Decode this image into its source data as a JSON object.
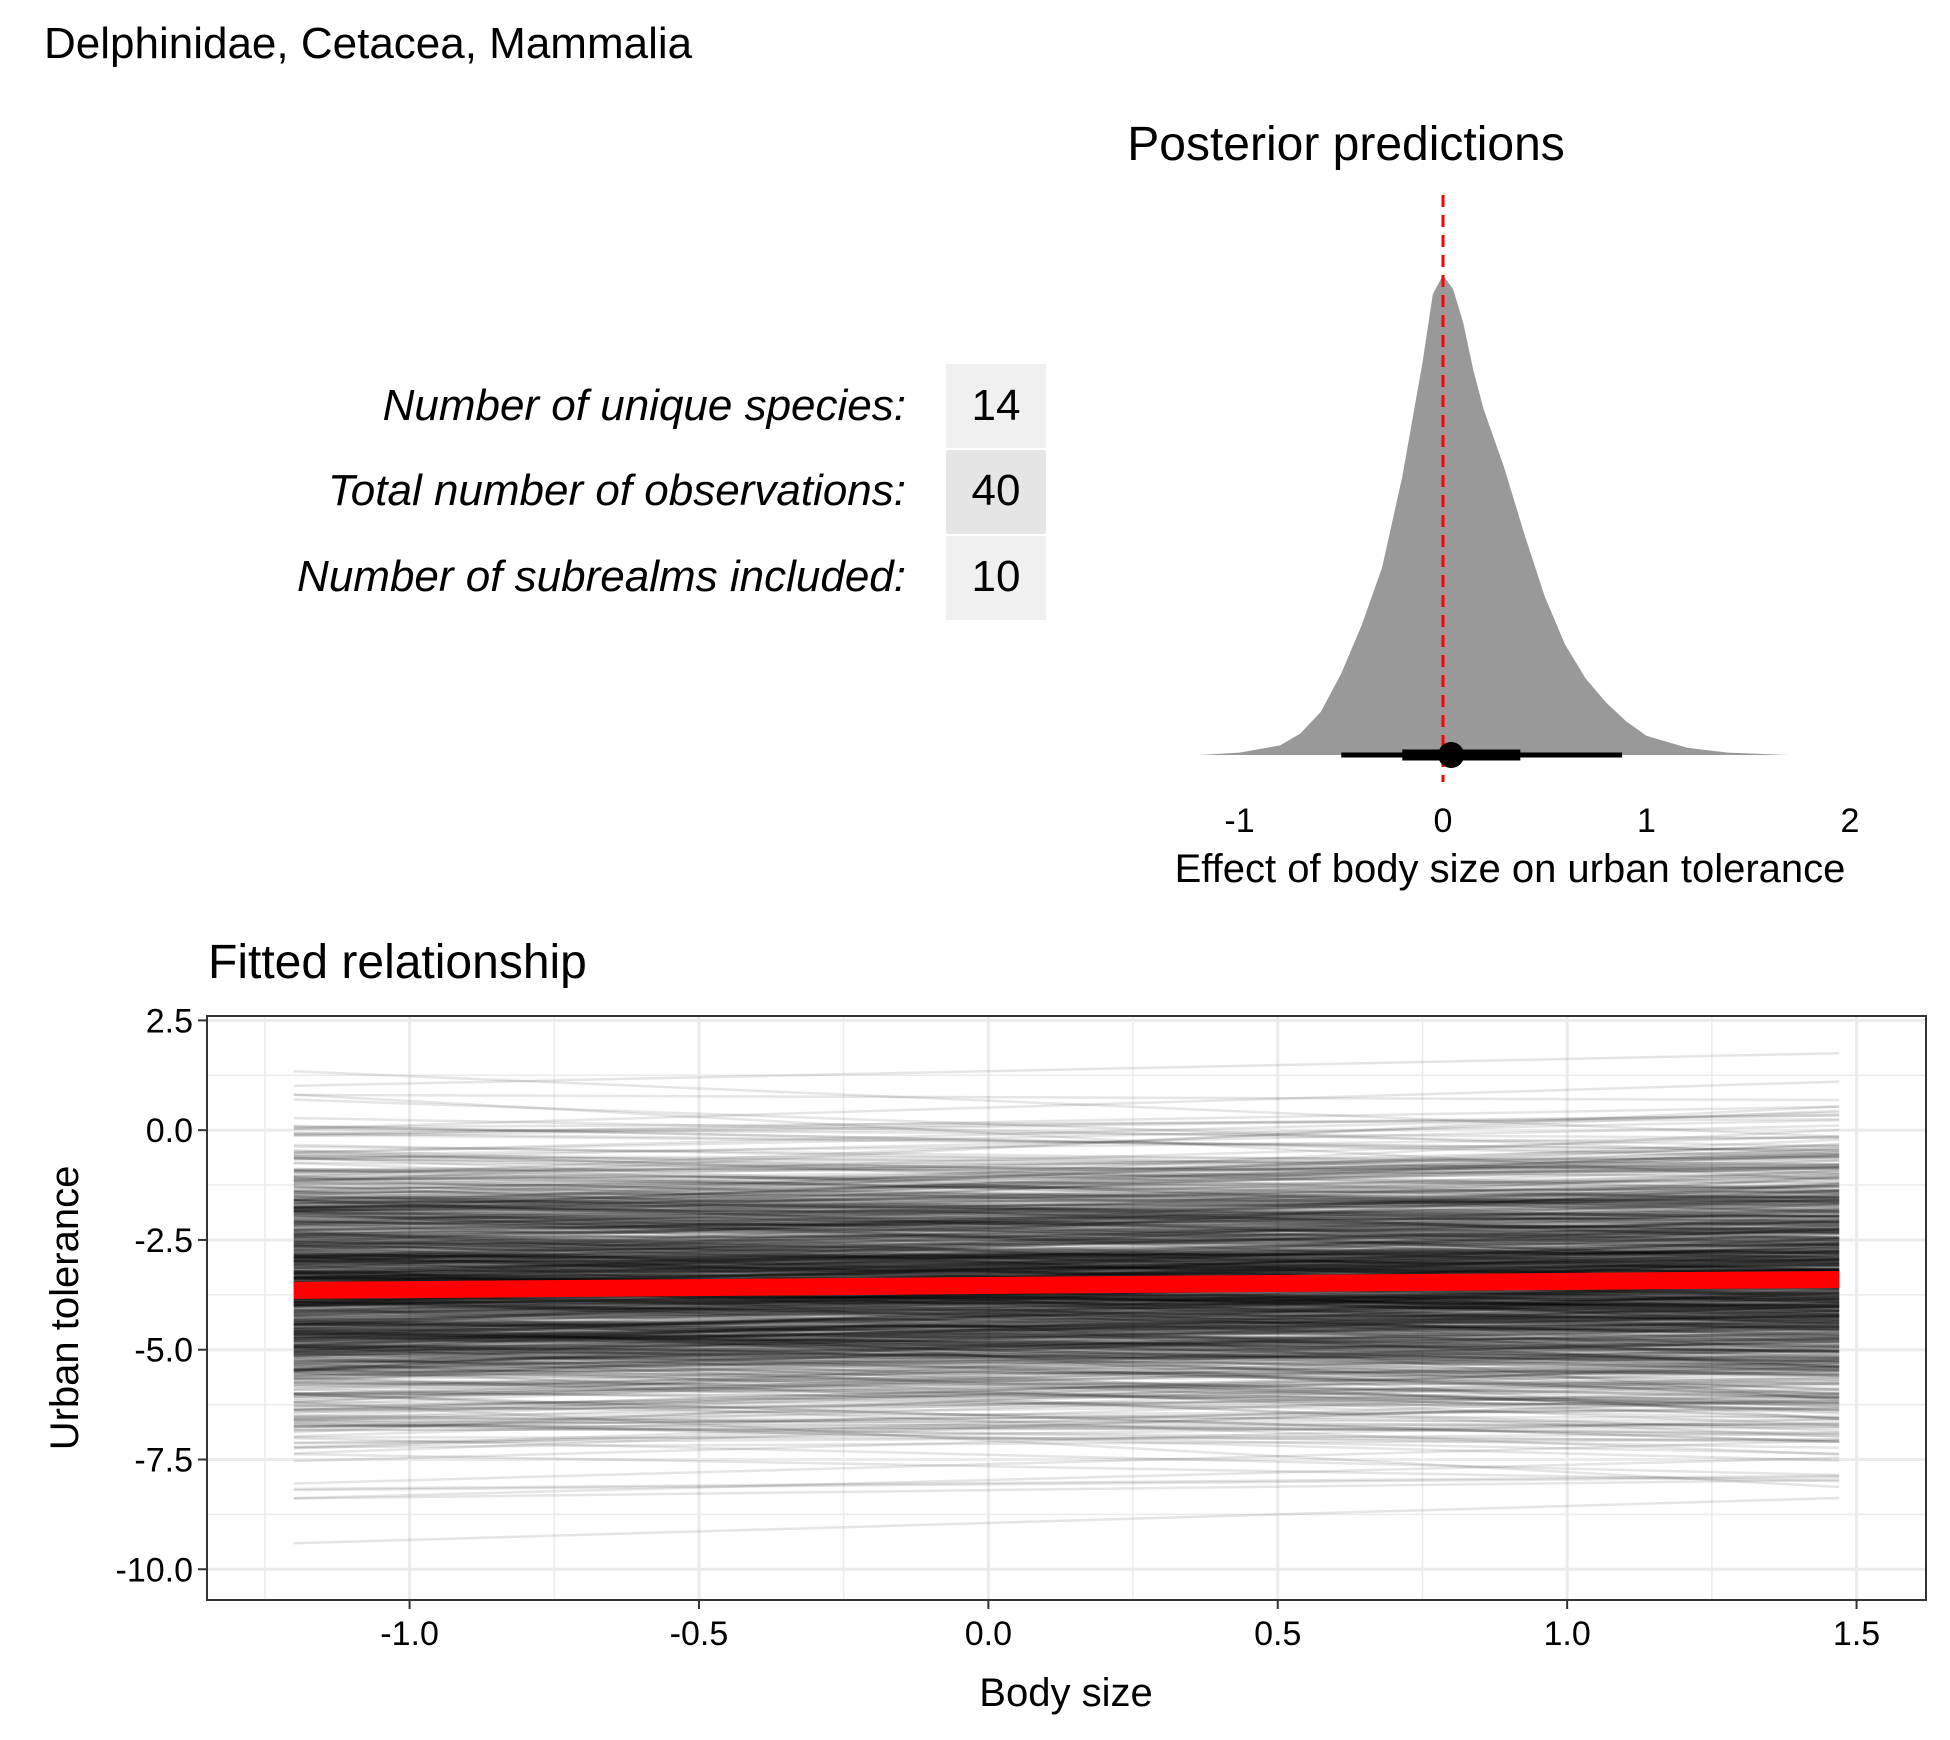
{
  "header": {
    "title": "Delphinidae, Cetacea, Mammalia"
  },
  "colors": {
    "density_fill": "#999999",
    "reference_line": "#ff0000",
    "fit_line": "#ff0000",
    "panel_border": "#333333",
    "grid": "#ebebeb",
    "table_cell_light": "#f0f0f0",
    "table_cell_dark": "#e5e5e5"
  },
  "summary_table": {
    "rows": [
      {
        "label": "Number of unique species:",
        "value": "14"
      },
      {
        "label": "Total number of observations:",
        "value": "40"
      },
      {
        "label": "Number of subrealms included:",
        "value": "10"
      }
    ]
  },
  "chart_data": [
    {
      "type": "area",
      "title": "Posterior predictions",
      "xlabel": "Effect of body size on urban tolerance",
      "ylabel": "",
      "xlim": [
        -1.2,
        1.7
      ],
      "ylim": [
        0,
        1
      ],
      "x_ticks": [
        -1,
        0,
        1,
        2
      ],
      "x_tick_labels": [
        "-1",
        "0",
        "1",
        "2"
      ],
      "density": {
        "x": [
          -1.2,
          -1.0,
          -0.8,
          -0.7,
          -0.6,
          -0.5,
          -0.4,
          -0.3,
          -0.2,
          -0.1,
          -0.05,
          0.0,
          0.05,
          0.1,
          0.15,
          0.2,
          0.3,
          0.4,
          0.5,
          0.6,
          0.7,
          0.8,
          0.9,
          1.0,
          1.2,
          1.4,
          1.7
        ],
        "y": [
          0.0,
          0.005,
          0.02,
          0.045,
          0.09,
          0.17,
          0.27,
          0.39,
          0.58,
          0.82,
          0.96,
          1.0,
          0.97,
          0.9,
          0.8,
          0.72,
          0.6,
          0.46,
          0.33,
          0.23,
          0.16,
          0.11,
          0.07,
          0.04,
          0.015,
          0.005,
          0.0
        ]
      },
      "reference_line": {
        "x": 0,
        "style": "dashed"
      },
      "point_interval": {
        "median": 0.04,
        "inner": [
          -0.2,
          0.38
        ],
        "outer": [
          -0.5,
          0.88
        ]
      }
    },
    {
      "type": "line",
      "title": "Fitted relationship",
      "xlabel": "Body size",
      "ylabel": "Urban tolerance",
      "xlim": [
        -1.35,
        1.62
      ],
      "ylim": [
        -10.7,
        2.6
      ],
      "x_ticks": [
        -1.0,
        -0.5,
        0.0,
        0.5,
        1.0,
        1.5
      ],
      "x_tick_labels": [
        "-1.0",
        "-0.5",
        "0.0",
        "0.5",
        "1.0",
        "1.5"
      ],
      "y_ticks": [
        2.5,
        0.0,
        -2.5,
        -5.0,
        -7.5,
        -10.0
      ],
      "y_tick_labels": [
        "2.5",
        "0.0",
        "-2.5",
        "-5.0",
        "-7.5",
        "-10.0"
      ],
      "x_range": [
        -1.2,
        1.47
      ],
      "posterior_draws": {
        "count": 1000,
        "intercept_mean": -3.55,
        "intercept_sd": 1.55,
        "slope_mean": 0.04,
        "slope_sd": 0.3,
        "line_opacity": 0.1
      },
      "mean_line": {
        "x": [
          -1.2,
          1.47
        ],
        "y": [
          -3.65,
          -3.4
        ]
      },
      "grid": true
    }
  ]
}
